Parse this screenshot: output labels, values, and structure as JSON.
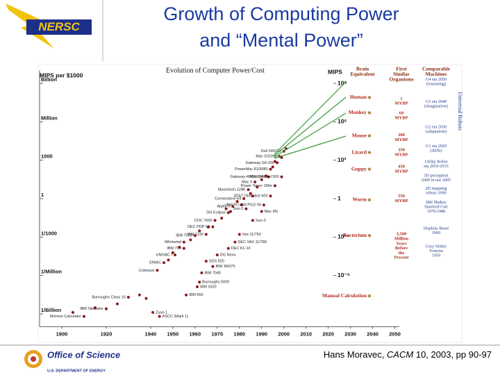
{
  "slide": {
    "title_lines": [
      "Growth of Computing Power",
      "and “Mental Power”"
    ],
    "logo_top": "NERSC",
    "logo_bottom": "Office of Science",
    "logo_bottom_sub": "U.S. DEPARTMENT OF ENERGY",
    "citation": [
      "Hans Moravec, ",
      "CACM",
      " 10, 2003, pp 90-97"
    ]
  },
  "chart_data": {
    "type": "scatter",
    "title": "Evolution of Computer Power/Cost",
    "y_label": "MIPS per $1000",
    "y2_label": "MIPS",
    "log_y": true,
    "xlim": [
      1890,
      2052
    ],
    "xticks": [
      1900,
      1920,
      1940,
      1950,
      1960,
      1970,
      1980,
      1990,
      2000,
      2010,
      2020,
      2030,
      2040,
      2050
    ],
    "ylim": [
      1e-10,
      10000000000.0
    ],
    "yticks": [
      {
        "value": 1000000000.0,
        "label": "Billion"
      },
      {
        "value": 1000000.0,
        "label": "Million"
      },
      1000,
      1,
      {
        "value": 0.001,
        "label": "1/1000"
      },
      {
        "value": 1e-06,
        "label": "1/Million"
      },
      {
        "value": 1e-09,
        "label": "1/Billion"
      }
    ],
    "y2lim": [
      1e-10,
      10000000000.0
    ],
    "y2ticks": [
      {
        "value": 1000000000.0,
        "label": "10⁹"
      },
      {
        "value": 1000000.0,
        "label": "10⁶"
      },
      {
        "value": 1000,
        "label": "10³"
      },
      1,
      {
        "value": 0.001,
        "label": "10⁻³"
      },
      {
        "value": 1e-06,
        "label": "10⁻⁶"
      }
    ],
    "color": "#8b1a1a",
    "x": [
      1910,
      1920,
      1930,
      1941,
      1944,
      1943,
      1946,
      1951,
      1955,
      1955,
      1960,
      1965,
      1968,
      1969,
      1975,
      1977,
      1983,
      1981,
      1982,
      1984,
      1987,
      1994,
      1997,
      1998,
      2000,
      1993,
      1999,
      1996,
      1994,
      1991,
      1990,
      1986,
      1980,
      1978,
      1975,
      1970,
      1965,
      1968,
      1963,
      1962,
      1961,
      1956,
      1905,
      1915,
      1925,
      1935,
      1938,
      1948,
      1950,
      1953,
      1958,
      1962,
      1966,
      1972,
      1974,
      1979,
      1985,
      1988,
      1990,
      1992,
      1995,
      1996,
      1999,
      2001,
      1986,
      1976
    ],
    "values": [
      6.3e-10,
      2.5e-09,
      2e-08,
      1.3e-09,
      6.3e-10,
      2.5e-06,
      1e-05,
      4e-05,
      0.00013,
      0.0004,
      0.0013,
      0.0016,
      0.0063,
      0.02,
      0.08,
      0.25,
      0.16,
      0.32,
      1,
      5,
      20,
      200,
      630,
      2000,
      5000,
      50,
      50,
      10,
      1.6,
      0.32,
      0.1,
      0.02,
      0.0016,
      0.0004,
      0.00013,
      4e-05,
      1.3e-05,
      5e-06,
      1.6e-06,
      3e-07,
      1.3e-07,
      3e-08,
      1.3e-09,
      3e-09,
      6e-09,
      3e-08,
      1.6e-08,
      1.6e-05,
      6e-05,
      0.00016,
      0.0006,
      0.003,
      0.006,
      0.03,
      0.16,
      0.6,
      2.5,
      8,
      30,
      60,
      300,
      800,
      1600,
      8000,
      1.6,
      0.1
    ],
    "labels": [
      "Monroe Calculator",
      "IBM Tabulator",
      "Burroughs Class 16",
      "Zuse-1",
      "ASCC (Mark 1)",
      "Colossus",
      "ENIAC",
      "UNIVAC I",
      "IBM 704",
      "Whirlwind",
      "IBM 7090",
      "IBM 1130",
      "DEC PDP-10",
      "CDC 7600",
      "DG Eclipse",
      "Apple II",
      "Sun-2",
      "IBM PC",
      "Commodore 64",
      "Macintosh-128K",
      "Mac II",
      "PowerMac 8100/80",
      "Gateway G6-200",
      "Mac G3/266",
      "Dell 340/2G",
      "Gateway-486DX2/66",
      "Mac G4 dual 500",
      "Power Tower 180e",
      "AT&T Globalyst 600",
      "IBM PS/2 90",
      "Mac IIfx",
      "Sun-3",
      "Vax 11/750",
      "DEC VAX 11/780",
      "DEC KL-10",
      "DG Nova",
      "SDS 920",
      "IBM 360/75",
      "IBM 7040",
      "Burroughs 5000",
      "IBM 1620",
      "IBM 650",
      null,
      null,
      null,
      null,
      null,
      null,
      null,
      null,
      null,
      null,
      null,
      null,
      null,
      null,
      null,
      null,
      null,
      null,
      null,
      null,
      null,
      null,
      null,
      null
    ],
    "organisms_header": [
      "Brain",
      "Equivalent"
    ],
    "organisms": [
      "Human",
      "Monkey",
      "Mouse",
      "Lizard",
      "Guppy",
      "Worm",
      "Bacterium",
      "Manual Calculation"
    ],
    "organism_values": [
      80000000.0,
      5000000.0,
      80000.0,
      4000,
      200,
      0.8,
      0.0013,
      2.5e-08
    ],
    "ages_header": [
      "First",
      "Similar",
      "Organisms"
    ],
    "ages": [
      {
        "lines": [
          "1",
          "MYBP"
        ],
        "value": 40000000.0
      },
      {
        "lines": [
          "60",
          "MYBP"
        ],
        "value": 3000000.0
      },
      {
        "lines": [
          "200",
          "MYBP"
        ],
        "value": 60000.0
      },
      {
        "lines": [
          "350",
          "MYBP"
        ],
        "value": 4000
      },
      {
        "lines": [
          "450",
          "MYBP"
        ],
        "value": 200
      },
      {
        "lines": [
          "550",
          "MYBP"
        ],
        "value": 1
      },
      {
        "lines": [
          "3,500",
          "Million",
          "Years",
          "Before",
          "the",
          "Present"
        ],
        "value": 0.0002
      }
    ],
    "machines_header": [
      "Comparable",
      "Machines"
    ],
    "machines_side_label": "Universal Robots",
    "machines": [
      {
        "lines": [
          "G4 eta 2050",
          "(reasoning)"
        ],
        "value": 1300000000.0
      },
      {
        "lines": [
          "G3 eta 2040",
          "(imagination)"
        ],
        "value": 25000000.0
      },
      {
        "lines": [
          "G2 eta 2030",
          "(adaptation)"
        ],
        "value": 250000.0
      },
      {
        "lines": [
          "G1 eta 2020",
          "(skills)"
        ],
        "value": 8000
      },
      {
        "lines": [
          "Utility Robot",
          "eta 2010-2015"
        ],
        "value": 500
      },
      {
        "lines": [
          "3D perception",
          "2000 in use 2005"
        ],
        "value": 40
      },
      {
        "lines": [
          "2D mapping",
          "robots 1990"
        ],
        "value": 4
      },
      {
        "lines": [
          "SRI Shakey",
          "Stanford Cart",
          "1970-1980"
        ],
        "value": 0.22
      },
      {
        "lines": [
          "Hopkins Beast",
          "1960"
        ],
        "value": 0.003
      },
      {
        "lines": [
          "Grey Walter",
          "Tortoise",
          "1950"
        ],
        "value": 8e-05
      }
    ]
  }
}
